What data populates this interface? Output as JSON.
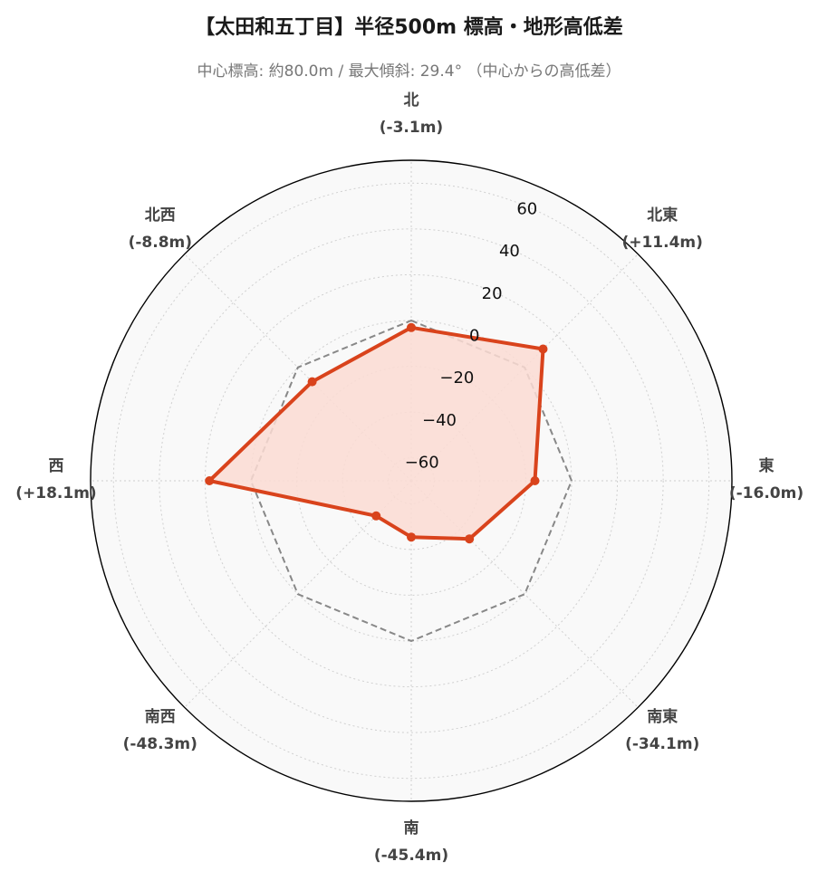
{
  "title": "【太田和五丁目】半径500m 標高・地形高低差",
  "subtitle": "中心標高: 約80.0m / 最大傾斜: 29.4° （中心からの高低差）",
  "chart_data": {
    "type": "radar",
    "title": "【太田和五丁目】半径500m 標高・地形高低差",
    "subtitle": "中心標高: 約80.0m / 最大傾斜: 29.4° （中心からの高低差）",
    "directions": [
      "北",
      "北東",
      "東",
      "南東",
      "南",
      "南西",
      "西",
      "北西"
    ],
    "direction_labels": [
      "(-3.1m)",
      "(+11.4m)",
      "(-16.0m)",
      "(-34.1m)",
      "(-45.4m)",
      "(-48.3m)",
      "(+18.1m)",
      "(-8.8m)"
    ],
    "series": [
      {
        "values": [
          -3.1,
          11.4,
          -16.0,
          -34.1,
          -45.4,
          -48.3,
          18.1,
          -8.8
        ]
      }
    ],
    "reference_value": 0,
    "rlim": [
      -70,
      70
    ],
    "rticks": [
      -60,
      -40,
      -20,
      0,
      20,
      40,
      60
    ],
    "rtick_labels": [
      "−60",
      "−40",
      "−20",
      "0",
      "20",
      "40",
      "60"
    ],
    "grid": true,
    "colors": {
      "series_line": "#d9431c",
      "series_fill": "#fcdcd4",
      "reference_line": "#888888",
      "plot_background": "#f9f9f9"
    }
  }
}
